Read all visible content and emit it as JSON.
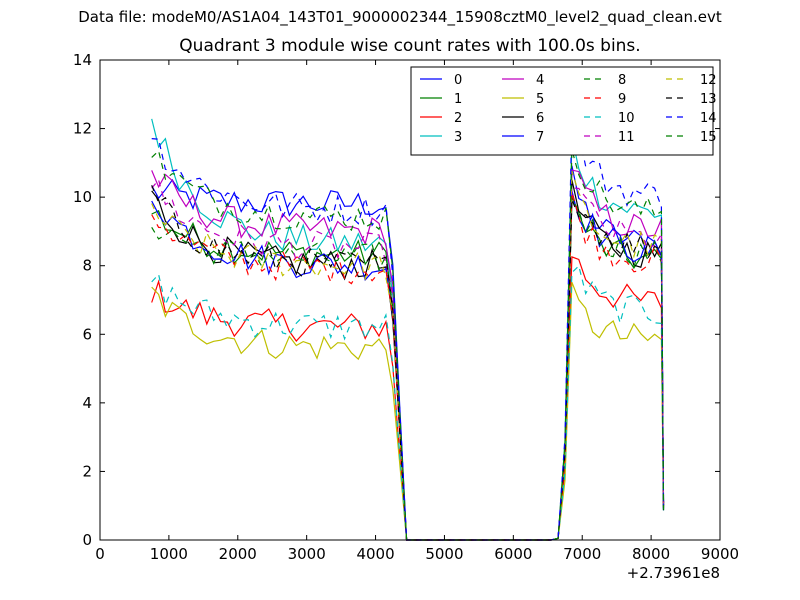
{
  "suptitle": "Data file: modeM0/AS1A04_143T01_9000002344_15908cztM0_level2_quad_clean.evt",
  "chart_data": {
    "type": "line",
    "title": "Quadrant 3 module wise count rates with 100.0s bins.",
    "xlabel": "",
    "ylabel": "",
    "x_offset_label": "+2.73961e8",
    "xlim": [
      0,
      9000
    ],
    "ylim": [
      0,
      14
    ],
    "xticks": [
      0,
      1000,
      2000,
      3000,
      4000,
      5000,
      6000,
      7000,
      8000,
      9000
    ],
    "yticks": [
      0,
      2,
      4,
      6,
      8,
      10,
      12,
      14
    ],
    "grid": false,
    "legend": "top-right",
    "legend_columns": 4,
    "series": [
      {
        "name": "0",
        "color": "#0000ff",
        "dash": "solid",
        "seg1": 9.8,
        "seg2": 8.6,
        "start": 10.2
      },
      {
        "name": "1",
        "color": "#008000",
        "dash": "solid",
        "seg1": 8.3,
        "seg2": 8.1,
        "start": 9.6
      },
      {
        "name": "2",
        "color": "#ff0000",
        "dash": "solid",
        "seg1": 6.2,
        "seg2": 6.9,
        "start": 7.3
      },
      {
        "name": "3",
        "color": "#00bfbf",
        "dash": "solid",
        "seg1": 8.6,
        "seg2": 9.5,
        "start": 12.3
      },
      {
        "name": "4",
        "color": "#bf00bf",
        "dash": "solid",
        "seg1": 9.0,
        "seg2": 9.0,
        "start": 10.7
      },
      {
        "name": "5",
        "color": "#bfbf00",
        "dash": "solid",
        "seg1": 5.6,
        "seg2": 5.8,
        "start": 7.2
      },
      {
        "name": "6",
        "color": "#000000",
        "dash": "solid",
        "seg1": 8.0,
        "seg2": 8.3,
        "start": 10.0
      },
      {
        "name": "7",
        "color": "#0000ff",
        "dash": "solid",
        "seg1": 8.0,
        "seg2": 8.4,
        "start": 10.1
      },
      {
        "name": "8",
        "color": "#008000",
        "dash": "dashed",
        "seg1": 8.2,
        "seg2": 8.3,
        "start": 9.3
      },
      {
        "name": "9",
        "color": "#ff0000",
        "dash": "dashed",
        "seg1": 7.9,
        "seg2": 8.1,
        "start": 9.6
      },
      {
        "name": "10",
        "color": "#00bfbf",
        "dash": "dashed",
        "seg1": 6.2,
        "seg2": 6.6,
        "start": 7.6
      },
      {
        "name": "11",
        "color": "#bf00bf",
        "dash": "dashed",
        "seg1": 8.5,
        "seg2": 8.7,
        "start": 10.4
      },
      {
        "name": "12",
        "color": "#bfbf00",
        "dash": "dashed",
        "seg1": 8.0,
        "seg2": 8.5,
        "start": 9.7
      },
      {
        "name": "13",
        "color": "#000000",
        "dash": "dashed",
        "seg1": 8.0,
        "seg2": 8.5,
        "start": 10.1
      },
      {
        "name": "14",
        "color": "#0000ff",
        "dash": "dashed",
        "seg1": 9.6,
        "seg2": 10.0,
        "start": 11.8
      },
      {
        "name": "15",
        "color": "#008000",
        "dash": "dashed",
        "seg1": 9.4,
        "seg2": 9.5,
        "start": 11.3
      }
    ]
  }
}
